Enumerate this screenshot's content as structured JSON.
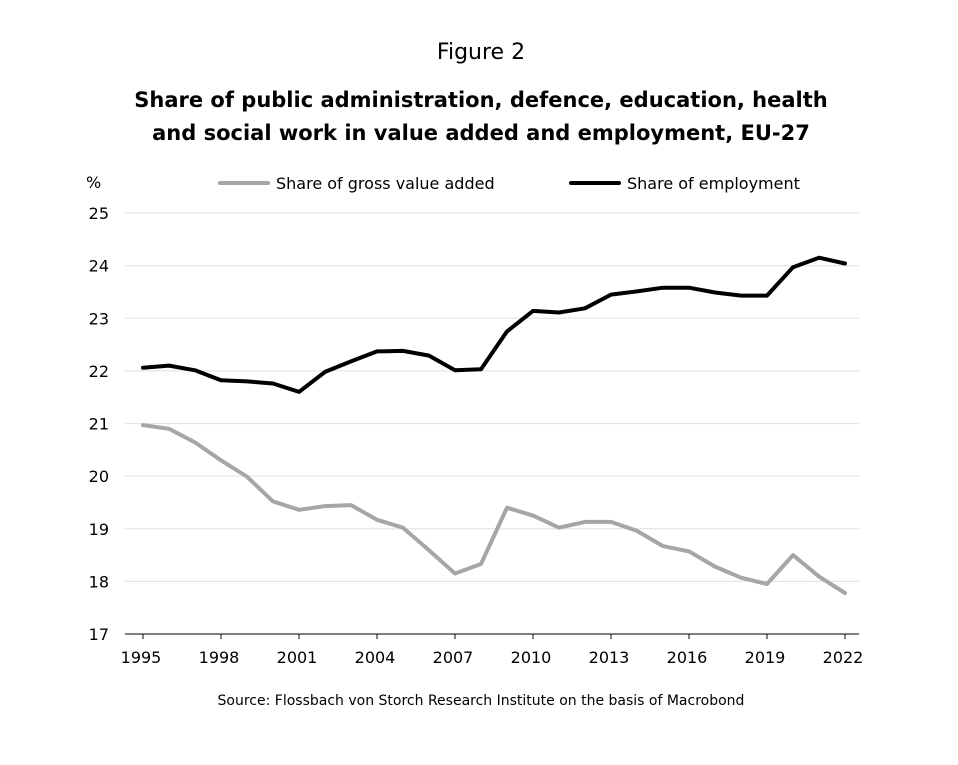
{
  "figure_label": "Figure 2",
  "title_line1": "Share of public administration, defence, education, health",
  "title_line2": "and social work in value added and employment, EU-27",
  "source": "Source: Flossbach von Storch Research Institute on the basis of Macrobond",
  "chart_data": {
    "type": "line",
    "title": "Share of public administration, defence, education, health and social work in value added and employment, EU-27",
    "ylabel": "%",
    "xlabel": "",
    "ylim": [
      17,
      25
    ],
    "xlim": [
      1995,
      2022
    ],
    "yticks": [
      "17",
      "18",
      "19",
      "20",
      "21",
      "22",
      "23",
      "24",
      "25"
    ],
    "xticks": [
      "1995",
      "1998",
      "2001",
      "2004",
      "2007",
      "2010",
      "2013",
      "2016",
      "2019",
      "2022"
    ],
    "grid": true,
    "legend_position": "top",
    "x": [
      1995,
      1996,
      1997,
      1998,
      1999,
      2000,
      2001,
      2002,
      2003,
      2004,
      2005,
      2006,
      2007,
      2008,
      2009,
      2010,
      2011,
      2012,
      2013,
      2014,
      2015,
      2016,
      2017,
      2018,
      2019,
      2020,
      2021,
      2022
    ],
    "series": [
      {
        "name": "Share of gross value added",
        "color": "#a6a6a6",
        "values": [
          20.97,
          20.9,
          20.64,
          20.3,
          19.99,
          19.52,
          19.36,
          19.43,
          19.45,
          19.17,
          19.02,
          18.59,
          18.15,
          18.33,
          19.4,
          19.25,
          19.02,
          19.13,
          19.13,
          18.96,
          18.67,
          18.57,
          18.28,
          18.07,
          17.95,
          18.5,
          18.09,
          17.78
        ]
      },
      {
        "name": "Share of employment",
        "color": "#000000",
        "values": [
          22.06,
          22.1,
          22.01,
          21.82,
          21.8,
          21.76,
          21.6,
          21.98,
          22.18,
          22.37,
          22.38,
          22.29,
          22.01,
          22.03,
          22.75,
          23.14,
          23.11,
          23.19,
          23.45,
          23.51,
          23.58,
          23.58,
          23.49,
          23.43,
          23.43,
          23.97,
          24.15,
          24.04
        ]
      }
    ]
  }
}
